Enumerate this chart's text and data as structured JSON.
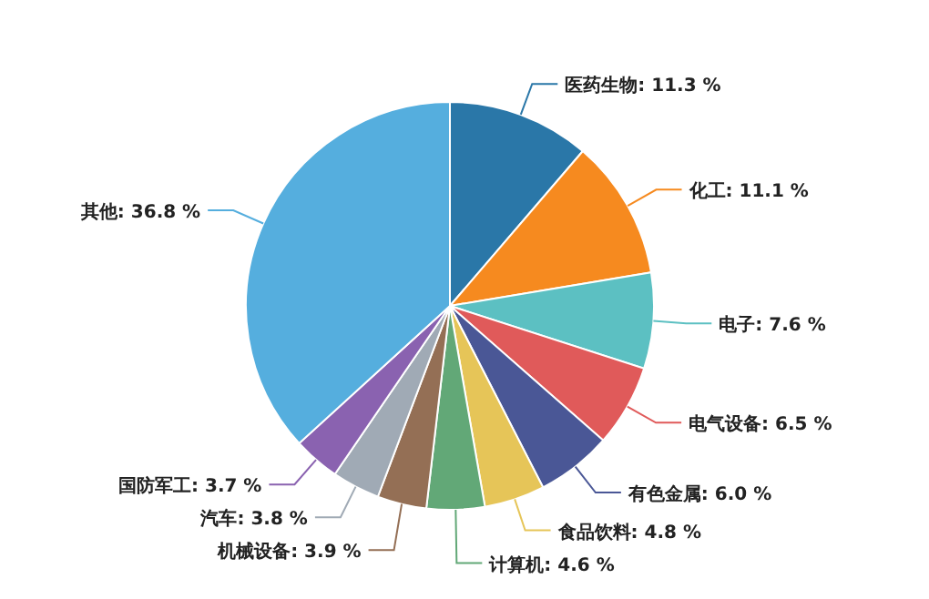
{
  "chart_data": {
    "type": "pie",
    "categories": [
      "医药生物",
      "化工",
      "电子",
      "电气设备",
      "有色金属",
      "食品饮料",
      "计算机",
      "机械设备",
      "汽车",
      "国防军工",
      "其他"
    ],
    "values": [
      11.3,
      11.1,
      7.6,
      6.5,
      6.0,
      4.8,
      4.6,
      3.9,
      3.8,
      3.7,
      36.8
    ],
    "value_labels": [
      "11.3 %",
      "11.1 %",
      "7.6 %",
      "6.5 %",
      "6.0 %",
      "4.8 %",
      "4.6 %",
      "3.9 %",
      "3.8 %",
      "3.7 %",
      "36.8 %"
    ],
    "colors": [
      "#2a77a8",
      "#f68a1f",
      "#5cc0c2",
      "#e05a5a",
      "#4a5796",
      "#e6c558",
      "#62a877",
      "#946f55",
      "#a0aab5",
      "#8a62b0",
      "#55aede"
    ]
  }
}
